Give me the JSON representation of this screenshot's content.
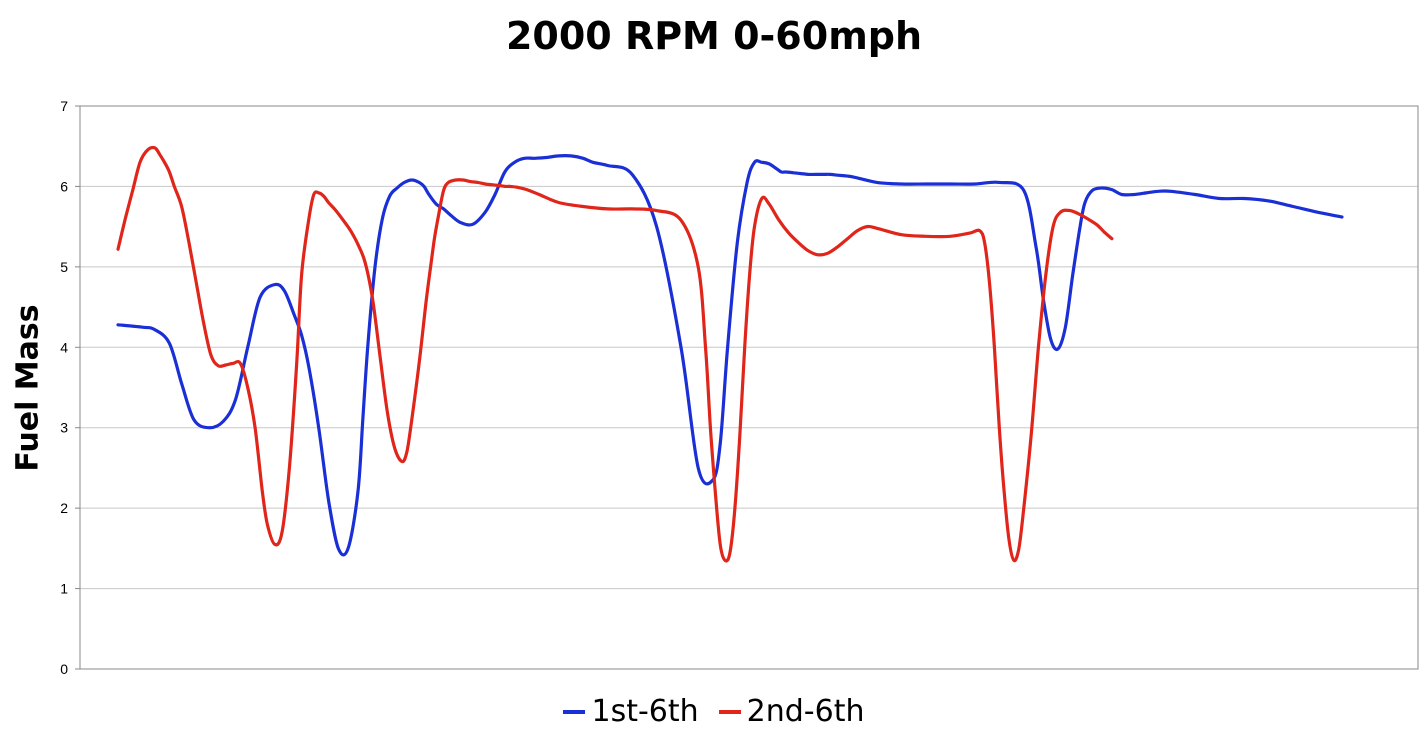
{
  "chart_data": {
    "type": "line",
    "title": "2000 RPM 0-60mph",
    "xlabel": "",
    "ylabel": "Fuel Mass",
    "ylim": [
      0,
      7
    ],
    "yticks": [
      "0",
      "1",
      "2",
      "3",
      "4",
      "5",
      "6",
      "7"
    ],
    "xlim": [
      0,
      1000
    ],
    "grid": true,
    "legend_position": "bottom",
    "series": [
      {
        "name": "1st-6th",
        "color": "#1a2fd6",
        "x": [
          0,
          20,
          30,
          42,
          52,
          62,
          74,
          86,
          96,
          106,
          116,
          128,
          136,
          144,
          150,
          156,
          164,
          172,
          180,
          188,
          196,
          200,
          204,
          210,
          216,
          222,
          228,
          234,
          240,
          246,
          250,
          254,
          260,
          266,
          272,
          280,
          290,
          300,
          308,
          316,
          324,
          332,
          340,
          350,
          360,
          370,
          380,
          388,
          400,
          420,
          440,
          460,
          474,
          486,
          492,
          498,
          506,
          514,
          520,
          526,
          532,
          538,
          542,
          546,
          552,
          558,
          564,
          570,
          576,
          582,
          588,
          600,
          620,
          640,
          660,
          680,
          700,
          720,
          740,
          750,
          756,
          762,
          768,
          774,
          780,
          786,
          790,
          796,
          804,
          812,
          820,
          830,
          840,
          850,
          860,
          880,
          900,
          920,
          940,
          960,
          980,
          1000
        ],
        "y": [
          4.28,
          4.25,
          4.22,
          4.05,
          3.55,
          3.1,
          3.0,
          3.08,
          3.35,
          4.0,
          4.62,
          4.78,
          4.7,
          4.4,
          4.15,
          3.75,
          3.0,
          2.1,
          1.5,
          1.5,
          2.2,
          3.1,
          4.0,
          5.0,
          5.6,
          5.88,
          5.98,
          6.05,
          6.08,
          6.05,
          6.0,
          5.9,
          5.78,
          5.72,
          5.64,
          5.55,
          5.53,
          5.68,
          5.9,
          6.18,
          6.3,
          6.35,
          6.35,
          6.36,
          6.38,
          6.38,
          6.35,
          6.3,
          6.26,
          6.15,
          5.5,
          4.0,
          2.5,
          2.35,
          2.8,
          4.0,
          5.3,
          6.05,
          6.3,
          6.3,
          6.28,
          6.22,
          6.18,
          6.18,
          6.17,
          6.16,
          6.15,
          6.15,
          6.15,
          6.15,
          6.14,
          6.12,
          6.05,
          6.03,
          6.03,
          6.03,
          6.03,
          6.05,
          5.95,
          5.25,
          4.6,
          4.1,
          3.98,
          4.25,
          4.9,
          5.5,
          5.8,
          5.95,
          5.98,
          5.96,
          5.9,
          5.9,
          5.92,
          5.94,
          5.94,
          5.9,
          5.85,
          5.85,
          5.82,
          5.75,
          5.68,
          5.62
        ]
      },
      {
        "name": "2nd-6th",
        "color": "#e0251a",
        "x": [
          0,
          6,
          12,
          18,
          24,
          30,
          34,
          38,
          42,
          46,
          52,
          58,
          64,
          70,
          76,
          82,
          88,
          94,
          100,
          106,
          112,
          118,
          122,
          128,
          134,
          140,
          146,
          150,
          156,
          160,
          164,
          168,
          172,
          178,
          184,
          190,
          196,
          202,
          208,
          214,
          220,
          226,
          232,
          236,
          240,
          246,
          252,
          258,
          262,
          266,
          270,
          276,
          282,
          288,
          294,
          300,
          306,
          312,
          316,
          320,
          326,
          334,
          344,
          360,
          380,
          400,
          420,
          440,
          460,
          474,
          480,
          484,
          488,
          492,
          496,
          500,
          504,
          508,
          512,
          516,
          520,
          526,
          532,
          540,
          548,
          556,
          564,
          572,
          580,
          588,
          596,
          604,
          612,
          620,
          640,
          660,
          680,
          696,
          704,
          708,
          712,
          716,
          720,
          724,
          728,
          732,
          736,
          740,
          746,
          752,
          758,
          764,
          770,
          778,
          786,
          794,
          800,
          806,
          812
        ],
        "y": [
          5.22,
          5.6,
          5.95,
          6.3,
          6.45,
          6.48,
          6.4,
          6.3,
          6.18,
          6.0,
          5.75,
          5.3,
          4.8,
          4.3,
          3.9,
          3.77,
          3.78,
          3.8,
          3.8,
          3.5,
          3.0,
          2.2,
          1.8,
          1.55,
          1.7,
          2.5,
          3.8,
          4.9,
          5.6,
          5.9,
          5.92,
          5.88,
          5.8,
          5.7,
          5.58,
          5.45,
          5.28,
          5.05,
          4.6,
          3.9,
          3.2,
          2.75,
          2.58,
          2.7,
          3.1,
          3.8,
          4.6,
          5.3,
          5.65,
          5.95,
          6.05,
          6.08,
          6.08,
          6.06,
          6.05,
          6.03,
          6.02,
          6.01,
          6.0,
          6.0,
          5.99,
          5.96,
          5.9,
          5.8,
          5.75,
          5.72,
          5.72,
          5.7,
          5.58,
          5.0,
          4.0,
          3.0,
          2.2,
          1.55,
          1.35,
          1.45,
          2.0,
          2.9,
          4.0,
          4.9,
          5.5,
          5.85,
          5.78,
          5.58,
          5.42,
          5.3,
          5.2,
          5.15,
          5.17,
          5.25,
          5.35,
          5.45,
          5.5,
          5.48,
          5.4,
          5.38,
          5.38,
          5.42,
          5.45,
          5.3,
          4.8,
          4.0,
          3.0,
          2.2,
          1.6,
          1.35,
          1.5,
          2.0,
          2.9,
          4.0,
          4.9,
          5.5,
          5.68,
          5.7,
          5.65,
          5.58,
          5.52,
          5.43,
          5.35
        ]
      }
    ]
  }
}
